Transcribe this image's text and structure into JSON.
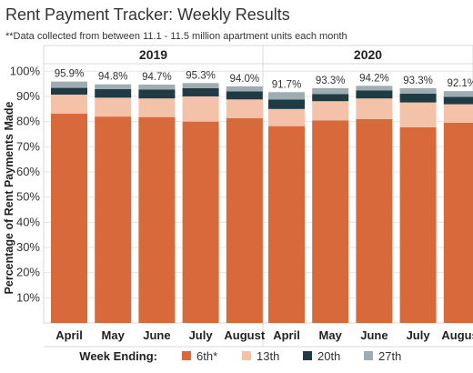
{
  "title": "Rent Payment Tracker: Weekly Results",
  "subtitle": "**Data collected from between 11.1 - 11.5 million apartment units each month",
  "colors": {
    "6th*": "#d7693a",
    "13th": "#f4c2a8",
    "20th": "#1f3c45",
    "27th": "#9fadb3",
    "grid": "#e6e6e6"
  },
  "chart_data": {
    "type": "bar",
    "stacked": true,
    "groups": [
      {
        "name": "2019",
        "categories": [
          "April",
          "May",
          "June",
          "July",
          "August"
        ]
      },
      {
        "name": "2020",
        "categories": [
          "April",
          "May",
          "June",
          "July",
          "August"
        ]
      }
    ],
    "series": [
      {
        "name": "6th*",
        "values": [
          83.2,
          82.0,
          81.8,
          80.0,
          81.4,
          78.2,
          80.5,
          81.0,
          77.7,
          79.5
        ]
      },
      {
        "name": "13th",
        "values": [
          7.5,
          7.5,
          7.4,
          10.0,
          7.4,
          6.8,
          7.6,
          8.2,
          9.9,
          7.4
        ]
      },
      {
        "name": "20th",
        "values": [
          2.7,
          3.4,
          3.5,
          3.3,
          3.2,
          3.8,
          2.8,
          3.2,
          3.5,
          2.9
        ]
      },
      {
        "name": "27th",
        "values": [
          2.5,
          1.9,
          2.0,
          2.0,
          2.0,
          2.9,
          2.4,
          1.8,
          2.2,
          2.3
        ]
      }
    ],
    "totals": [
      "95.9%",
      "94.8%",
      "94.7%",
      "95.3%",
      "94.0%",
      "91.7%",
      "93.3%",
      "94.2%",
      "93.3%",
      "92.1%"
    ],
    "ylabel": "Percentage of Rent Payments Made",
    "yticks": [
      "10%",
      "20%",
      "30%",
      "40%",
      "50%",
      "60%",
      "70%",
      "80%",
      "90%",
      "100%"
    ],
    "ylim": [
      0,
      103
    ],
    "grid": true,
    "legend_title": "Week Ending:",
    "legend_position": "bottom"
  }
}
